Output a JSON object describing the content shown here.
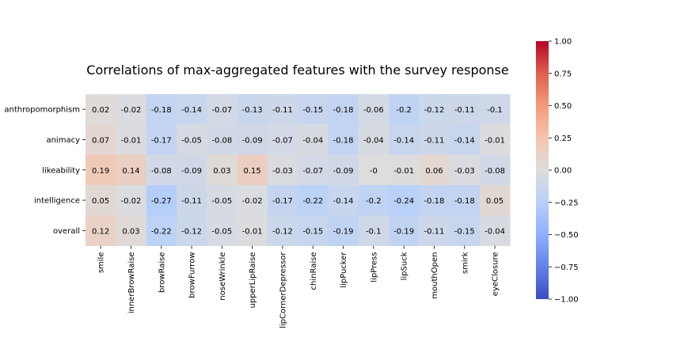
{
  "chart_data": {
    "type": "heatmap",
    "title": "Correlations of max-aggregated features with the survey response",
    "rows": [
      "anthropomorphism",
      "animacy",
      "likeability",
      "intelligence",
      "overall"
    ],
    "columns": [
      "smile",
      "innerBrowRaise",
      "browRaise",
      "browFurrow",
      "noseWrinkle",
      "upperLipRaise",
      "lipCornerDepressor",
      "chinRaise",
      "lipPucker",
      "lipPress",
      "lipSuck",
      "mouthOpen",
      "smirk",
      "eyeClosure"
    ],
    "values": [
      [
        0.02,
        -0.02,
        -0.18,
        -0.14,
        -0.07,
        -0.13,
        -0.11,
        -0.15,
        -0.18,
        -0.06,
        -0.2,
        -0.12,
        -0.11,
        -0.1
      ],
      [
        0.07,
        -0.01,
        -0.17,
        -0.05,
        -0.08,
        -0.09,
        -0.07,
        -0.04,
        -0.18,
        -0.04,
        -0.14,
        -0.11,
        -0.14,
        -0.01
      ],
      [
        0.19,
        0.14,
        -0.08,
        -0.09,
        0.03,
        0.15,
        -0.03,
        -0.07,
        -0.09,
        -0.0,
        -0.01,
        0.06,
        -0.03,
        -0.08
      ],
      [
        0.05,
        -0.02,
        -0.27,
        -0.11,
        -0.05,
        -0.02,
        -0.17,
        -0.22,
        -0.14,
        -0.2,
        -0.24,
        -0.18,
        -0.18,
        0.05
      ],
      [
        0.12,
        0.03,
        -0.22,
        -0.12,
        -0.05,
        -0.01,
        -0.12,
        -0.15,
        -0.19,
        -0.1,
        -0.19,
        -0.11,
        -0.15,
        -0.04
      ]
    ],
    "cell_labels": [
      [
        "0.02",
        "-0.02",
        "-0.18",
        "-0.14",
        "-0.07",
        "-0.13",
        "-0.11",
        "-0.15",
        "-0.18",
        "-0.06",
        "-0.2",
        "-0.12",
        "-0.11",
        "-0.1"
      ],
      [
        "0.07",
        "-0.01",
        "-0.17",
        "-0.05",
        "-0.08",
        "-0.09",
        "-0.07",
        "-0.04",
        "-0.18",
        "-0.04",
        "-0.14",
        "-0.11",
        "-0.14",
        "-0.01"
      ],
      [
        "0.19",
        "0.14",
        "-0.08",
        "-0.09",
        "0.03",
        "0.15",
        "-0.03",
        "-0.07",
        "-0.09",
        "-0",
        "-0.01",
        "0.06",
        "-0.03",
        "-0.08"
      ],
      [
        "0.05",
        "-0.02",
        "-0.27",
        "-0.11",
        "-0.05",
        "-0.02",
        "-0.17",
        "-0.22",
        "-0.14",
        "-0.2",
        "-0.24",
        "-0.18",
        "-0.18",
        "0.05"
      ],
      [
        "0.12",
        "0.03",
        "-0.22",
        "-0.12",
        "-0.05",
        "-0.01",
        "-0.12",
        "-0.15",
        "-0.19",
        "-0.1",
        "-0.19",
        "-0.11",
        "-0.15",
        "-0.04"
      ]
    ],
    "colorbar": {
      "range": [
        -1.0,
        1.0
      ],
      "ticks": [
        1.0,
        0.75,
        0.5,
        0.25,
        0.0,
        -0.25,
        -0.5,
        -0.75,
        -1.0
      ],
      "tick_labels": [
        "1.00",
        "0.75",
        "0.50",
        "0.25",
        "0.00",
        "−0.25",
        "−0.50",
        "−0.75",
        "−1.00"
      ],
      "colormap": "coolwarm",
      "colors": {
        "low": "#3b4cc0",
        "mid": "#dddddd",
        "high": "#b40426"
      }
    }
  }
}
